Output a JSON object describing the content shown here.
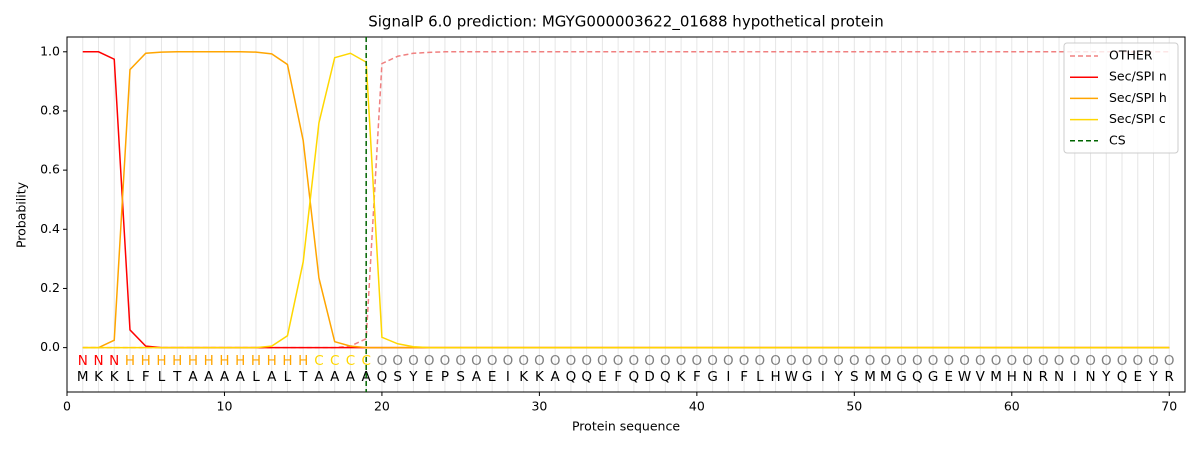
{
  "chart_data": {
    "type": "line",
    "title": "SignalP 6.0 prediction: MGYG000003622_01688 hypothetical protein",
    "xlabel": "Protein sequence",
    "ylabel": "Probability",
    "xlim": [
      0,
      71
    ],
    "ylim": [
      -0.15,
      1.05
    ],
    "xticks": [
      0,
      10,
      20,
      30,
      40,
      50,
      60,
      70
    ],
    "yticks": [
      {
        "value": 0,
        "label": "0.0"
      },
      0.2,
      0.4,
      0.6,
      0.8,
      {
        "value": 1,
        "label": "1.0"
      }
    ],
    "legend": "upper right",
    "x": [
      1,
      2,
      3,
      4,
      5,
      6,
      7,
      8,
      9,
      10,
      11,
      12,
      13,
      14,
      15,
      16,
      17,
      18,
      19,
      20,
      21,
      22,
      23,
      24,
      25,
      26,
      27,
      28,
      29,
      30,
      31,
      32,
      33,
      34,
      35,
      36,
      37,
      38,
      39,
      40,
      41,
      42,
      43,
      44,
      45,
      46,
      47,
      48,
      49,
      50,
      51,
      52,
      53,
      54,
      55,
      56,
      57,
      58,
      59,
      60,
      61,
      62,
      63,
      64,
      65,
      66,
      67,
      68,
      69,
      70
    ],
    "sequence": [
      "M",
      "K",
      "K",
      "L",
      "F",
      "L",
      "T",
      "A",
      "A",
      "A",
      "A",
      "L",
      "A",
      "L",
      "T",
      "A",
      "A",
      "A",
      "A",
      "Q",
      "S",
      "Y",
      "E",
      "P",
      "S",
      "A",
      "E",
      "I",
      "K",
      "K",
      "A",
      "Q",
      "Q",
      "E",
      "F",
      "Q",
      "D",
      "Q",
      "K",
      "F",
      "G",
      "I",
      "F",
      "L",
      "H",
      "W",
      "G",
      "I",
      "Y",
      "S",
      "M",
      "M",
      "G",
      "Q",
      "G",
      "E",
      "W",
      "V",
      "M",
      "H",
      "N",
      "R",
      "N",
      "I",
      "N",
      "Y",
      "Q",
      "E",
      "Y",
      "R"
    ],
    "labels": [
      "N",
      "N",
      "N",
      "H",
      "H",
      "H",
      "H",
      "H",
      "H",
      "H",
      "H",
      "H",
      "H",
      "H",
      "H",
      "C",
      "C",
      "C",
      "C",
      "O",
      "O",
      "O",
      "O",
      "O",
      "O",
      "O",
      "O",
      "O",
      "O",
      "O",
      "O",
      "O",
      "O",
      "O",
      "O",
      "O",
      "O",
      "O",
      "O",
      "O",
      "O",
      "O",
      "O",
      "O",
      "O",
      "O",
      "O",
      "O",
      "O",
      "O",
      "O",
      "O",
      "O",
      "O",
      "O",
      "O",
      "O",
      "O",
      "O",
      "O",
      "O",
      "O",
      "O",
      "O",
      "O",
      "O",
      "O",
      "O",
      "O",
      "O"
    ],
    "label_colors": {
      "N": "red",
      "H": "orange",
      "C": "gold",
      "O": "grey"
    },
    "series": [
      {
        "name": "OTHER",
        "color": "lightcoral",
        "dashed": true,
        "values": [
          0,
          0,
          0,
          0,
          0,
          0,
          0,
          0,
          0,
          0,
          0,
          0,
          0,
          0,
          0,
          0,
          0,
          0.005,
          0.03,
          0.96,
          0.985,
          0.995,
          0.998,
          1,
          1,
          1,
          1,
          1,
          1,
          1,
          1,
          1,
          1,
          1,
          1,
          1,
          1,
          1,
          1,
          1,
          1,
          1,
          1,
          1,
          1,
          1,
          1,
          1,
          1,
          1,
          1,
          1,
          1,
          1,
          1,
          1,
          1,
          1,
          1,
          1,
          1,
          1,
          1,
          1,
          1,
          1,
          1,
          1,
          1,
          1
        ]
      },
      {
        "name": "Sec/SPI n",
        "color": "red",
        "values": [
          1,
          1,
          0.975,
          0.06,
          0.005,
          0,
          0,
          0,
          0,
          0,
          0,
          0,
          0,
          0,
          0,
          0,
          0,
          0,
          0,
          0,
          0,
          0,
          0,
          0,
          0,
          0,
          0,
          0,
          0,
          0,
          0,
          0,
          0,
          0,
          0,
          0,
          0,
          0,
          0,
          0,
          0,
          0,
          0,
          0,
          0,
          0,
          0,
          0,
          0,
          0,
          0,
          0,
          0,
          0,
          0,
          0,
          0,
          0,
          0,
          0,
          0,
          0,
          0,
          0,
          0,
          0,
          0,
          0,
          0,
          0
        ]
      },
      {
        "name": "Sec/SPI h",
        "color": "orange",
        "values": [
          0,
          0,
          0.025,
          0.94,
          0.995,
          0.999,
          1,
          1,
          1,
          1,
          1,
          0.999,
          0.993,
          0.957,
          0.7,
          0.235,
          0.02,
          0.005,
          0,
          0,
          0,
          0,
          0,
          0,
          0,
          0,
          0,
          0,
          0,
          0,
          0,
          0,
          0,
          0,
          0,
          0,
          0,
          0,
          0,
          0,
          0,
          0,
          0,
          0,
          0,
          0,
          0,
          0,
          0,
          0,
          0,
          0,
          0,
          0,
          0,
          0,
          0,
          0,
          0,
          0,
          0,
          0,
          0,
          0,
          0,
          0,
          0,
          0,
          0,
          0
        ]
      },
      {
        "name": "Sec/SPI c",
        "color": "gold",
        "values": [
          0,
          0,
          0,
          0,
          0,
          0,
          0,
          0,
          0,
          0,
          0,
          0,
          0.005,
          0.04,
          0.29,
          0.76,
          0.98,
          0.995,
          0.965,
          0.035,
          0.013,
          0.003,
          0,
          0,
          0,
          0,
          0,
          0,
          0,
          0,
          0,
          0,
          0,
          0,
          0,
          0,
          0,
          0,
          0,
          0,
          0,
          0,
          0,
          0,
          0,
          0,
          0,
          0,
          0,
          0,
          0,
          0,
          0,
          0,
          0,
          0,
          0,
          0,
          0,
          0,
          0,
          0,
          0,
          0,
          0,
          0,
          0,
          0,
          0,
          0
        ]
      }
    ],
    "cs": {
      "name": "CS",
      "color": "darkgreen",
      "x": 19
    }
  }
}
